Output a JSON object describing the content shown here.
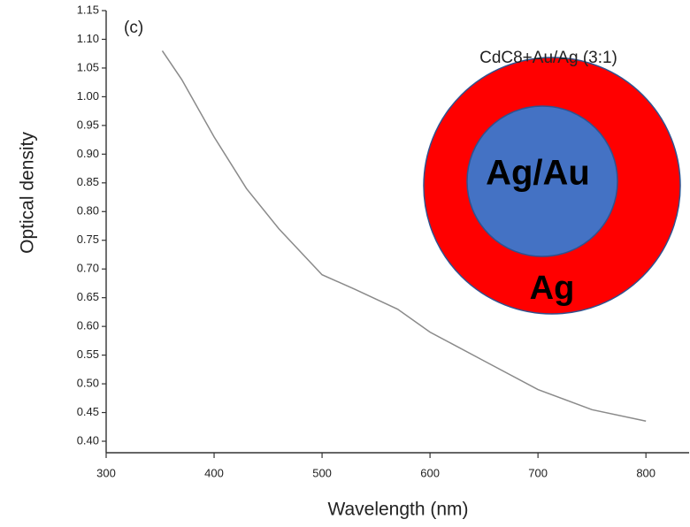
{
  "chart_data": {
    "type": "line",
    "panel_label": "(c)",
    "x_label": "Wavelength (nm)",
    "y_label": "Optical density",
    "x": [
      352,
      370,
      400,
      430,
      460,
      500,
      530,
      570,
      600,
      650,
      700,
      750,
      800
    ],
    "series": [
      {
        "name": "CdC8+Au/Ag (3:1)",
        "color": "#8a8a8a",
        "values": [
          1.08,
          1.03,
          0.93,
          0.84,
          0.77,
          0.69,
          0.665,
          0.63,
          0.59,
          0.54,
          0.49,
          0.455,
          0.435
        ]
      }
    ],
    "xlim": [
      300,
      840
    ],
    "xticks": [
      300,
      400,
      500,
      600,
      700,
      800
    ],
    "ylim": [
      0.38,
      1.15
    ],
    "yticks": [
      {
        "value": 0.4,
        "label": "0.40"
      },
      0.45,
      {
        "value": 0.5,
        "label": "0.50"
      },
      0.55,
      {
        "value": 0.6,
        "label": "0.60"
      },
      0.65,
      {
        "value": 0.7,
        "label": "0.70"
      },
      0.75,
      {
        "value": 0.8,
        "label": "0.80"
      },
      0.85,
      {
        "value": 0.9,
        "label": "0.90"
      },
      0.95,
      {
        "value": 1.0,
        "label": "1.00"
      },
      1.05,
      {
        "value": 1.1,
        "label": "1.10"
      },
      1.15
    ],
    "inset": {
      "inner_label": "Ag/Au",
      "outer_label": "Ag",
      "inner_color": "#4472c4",
      "outer_color": "#ff0000"
    }
  }
}
